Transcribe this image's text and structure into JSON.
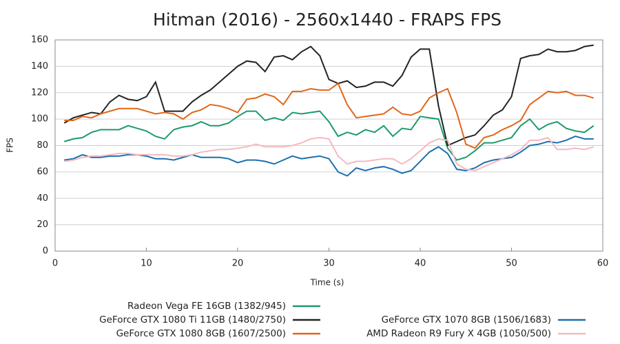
{
  "chart_data": {
    "type": "line",
    "title": "Hitman (2016) - 2560x1440 - FRAPS FPS",
    "x_label": "Time (s)",
    "y_label": "FPS",
    "x": [
      1,
      2,
      3,
      4,
      5,
      6,
      7,
      8,
      9,
      10,
      11,
      12,
      13,
      14,
      15,
      16,
      17,
      18,
      19,
      20,
      21,
      22,
      23,
      24,
      25,
      26,
      27,
      28,
      29,
      30,
      31,
      32,
      33,
      34,
      35,
      36,
      37,
      38,
      39,
      40,
      41,
      42,
      43,
      44,
      45,
      46,
      47,
      48,
      49,
      50,
      51,
      52,
      53,
      54,
      55,
      56,
      57,
      58,
      59
    ],
    "xlim": [
      0,
      60
    ],
    "xticks": [
      0,
      10,
      20,
      30,
      40,
      50,
      60
    ],
    "ylim": [
      0,
      160
    ],
    "yticks": [
      0,
      20,
      40,
      60,
      80,
      100,
      120,
      140,
      160
    ],
    "grid": true,
    "series": [
      {
        "name": "Radeon Vega FE 16GB (1382/945)",
        "color": "#1a9a6c",
        "values": [
          83,
          85,
          86,
          90,
          92,
          92,
          92,
          95,
          93,
          91,
          87,
          85,
          92,
          94,
          95,
          98,
          95,
          95,
          97,
          102,
          106,
          106,
          99,
          101,
          99,
          105,
          104,
          105,
          106,
          98,
          87,
          90,
          88,
          92,
          90,
          95,
          87,
          93,
          92,
          102,
          101,
          100,
          78,
          69,
          71,
          76,
          82,
          82,
          84,
          86,
          95,
          100,
          92,
          96,
          98,
          93,
          91,
          90,
          95
        ]
      },
      {
        "name": "GeForce GTX 1080 Ti 11GB (1480/2750)",
        "color": "#222222",
        "values": [
          97,
          101,
          103,
          105,
          104,
          113,
          118,
          115,
          114,
          117,
          128,
          106,
          106,
          106,
          113,
          118,
          122,
          128,
          134,
          140,
          144,
          143,
          136,
          147,
          148,
          145,
          151,
          155,
          148,
          130,
          127,
          129,
          124,
          125,
          128,
          128,
          125,
          133,
          147,
          153,
          153,
          110,
          80,
          83,
          86,
          88,
          95,
          103,
          107,
          117,
          146,
          148,
          149,
          153,
          151,
          151,
          152,
          155,
          156
        ]
      },
      {
        "name": "GeForce GTX 1080 8GB (1607/2500)",
        "color": "#e0661a",
        "values": [
          99,
          99,
          102,
          101,
          104,
          106,
          108,
          108,
          108,
          106,
          104,
          105,
          104,
          100,
          105,
          107,
          111,
          110,
          108,
          105,
          115,
          116,
          119,
          117,
          111,
          121,
          121,
          123,
          122,
          122,
          127,
          111,
          101,
          102,
          103,
          104,
          109,
          104,
          103,
          106,
          116,
          120,
          123,
          105,
          81,
          78,
          86,
          88,
          92,
          95,
          99,
          111,
          116,
          121,
          120,
          121,
          118,
          118,
          116
        ]
      },
      {
        "name": "GeForce GTX 1070 8GB (1506/1683)",
        "color": "#1a6fad",
        "values": [
          69,
          70,
          73,
          71,
          71,
          72,
          72,
          73,
          73,
          72,
          70,
          70,
          69,
          71,
          73,
          71,
          71,
          71,
          70,
          67,
          69,
          69,
          68,
          66,
          69,
          72,
          70,
          71,
          72,
          70,
          60,
          57,
          63,
          61,
          63,
          64,
          62,
          59,
          61,
          68,
          75,
          79,
          74,
          62,
          61,
          63,
          67,
          69,
          70,
          71,
          75,
          80,
          81,
          83,
          82,
          84,
          87,
          85,
          85
        ]
      },
      {
        "name": "AMD Radeon R9 Fury X 4GB (1050/500)",
        "color": "#f5b8c0",
        "values": [
          68,
          69,
          71,
          72,
          72,
          73,
          74,
          74,
          73,
          73,
          73,
          73,
          72,
          72,
          73,
          75,
          76,
          77,
          77,
          78,
          79,
          81,
          79,
          79,
          79,
          80,
          82,
          85,
          86,
          85,
          72,
          66,
          68,
          68,
          69,
          70,
          70,
          66,
          70,
          76,
          82,
          85,
          84,
          66,
          62,
          61,
          64,
          67,
          70,
          73,
          77,
          84,
          84,
          86,
          77,
          77,
          78,
          77,
          79
        ]
      }
    ]
  }
}
